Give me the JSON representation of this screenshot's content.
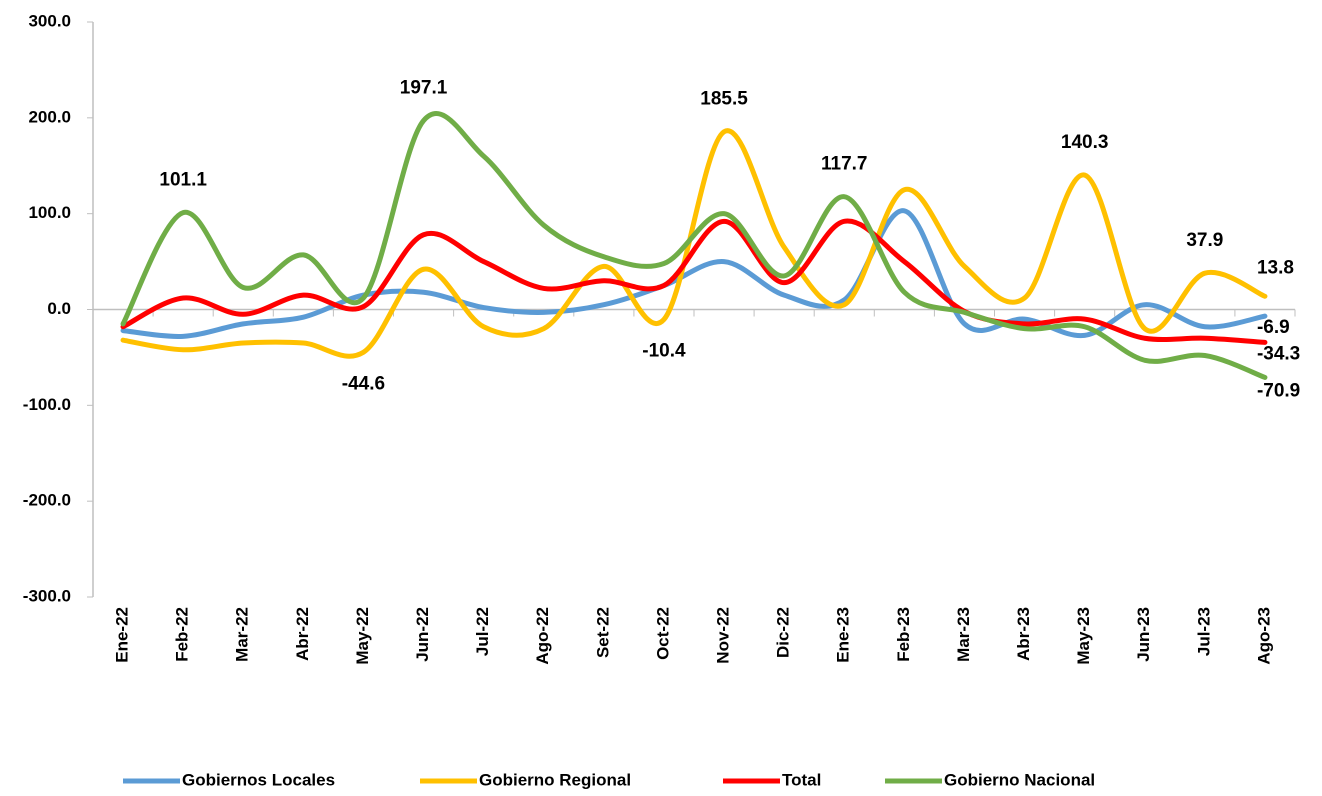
{
  "chart_data": {
    "type": "line",
    "categories": [
      "Ene-22",
      "Feb-22",
      "Mar-22",
      "Abr-22",
      "May-22",
      "Jun-22",
      "Jul-22",
      "Ago-22",
      "Set-22",
      "Oct-22",
      "Nov-22",
      "Dic-22",
      "Ene-23",
      "Feb-23",
      "Mar-23",
      "Abr-23",
      "May-23",
      "Jun-23",
      "Jul-23",
      "Ago-23"
    ],
    "ylim": [
      -300,
      300
    ],
    "yticks": [
      {
        "value": -300,
        "label": "-300.0"
      },
      {
        "value": -200,
        "label": "-200.0"
      },
      {
        "value": -100,
        "label": "-100.0"
      },
      {
        "value": 0,
        "label": "0.0"
      },
      {
        "value": 100,
        "label": "100.0"
      },
      {
        "value": 200,
        "label": "200.0"
      },
      {
        "value": 300,
        "label": "300.0"
      }
    ],
    "grid": false,
    "legend": "bottom",
    "series": [
      {
        "name": "Gobiernos Locales",
        "color": "#5b9bd5",
        "values": [
          -22,
          -28,
          -15,
          -8,
          15,
          18,
          2,
          -3,
          5,
          25,
          50,
          15,
          10,
          103,
          -15,
          -10,
          -27,
          5,
          -18,
          -6.9
        ],
        "value_labels": [
          null,
          null,
          null,
          null,
          null,
          null,
          null,
          null,
          null,
          null,
          null,
          null,
          null,
          null,
          null,
          null,
          null,
          null,
          null,
          "-6.9"
        ]
      },
      {
        "name": "Gobierno Regional",
        "color": "#ffc000",
        "values": [
          -32,
          -42,
          -35,
          -35,
          -44.6,
          42,
          -18,
          -20,
          45,
          -10.4,
          185.5,
          65,
          5,
          125,
          45,
          12,
          140.3,
          -20,
          37.9,
          13.8
        ],
        "value_labels": [
          null,
          null,
          null,
          null,
          "-44.6",
          null,
          null,
          null,
          null,
          "-10.4",
          "185.5",
          null,
          null,
          null,
          null,
          null,
          "140.3",
          null,
          "37.9",
          "13.8"
        ]
      },
      {
        "name": "Total",
        "color": "#ff0000",
        "values": [
          -18,
          12,
          -5,
          15,
          3,
          78,
          50,
          22,
          30,
          25,
          92,
          28,
          92,
          50,
          -2,
          -15,
          -10,
          -30,
          -30,
          -34.3
        ],
        "value_labels": [
          null,
          null,
          null,
          null,
          null,
          null,
          null,
          null,
          null,
          null,
          null,
          null,
          null,
          null,
          null,
          null,
          null,
          null,
          null,
          "-34.3"
        ]
      },
      {
        "name": "Gobierno Nacional",
        "color": "#70ad47",
        "values": [
          -15,
          101.1,
          23,
          57,
          12,
          197.1,
          160,
          88,
          55,
          48,
          100,
          35,
          117.7,
          18,
          -3,
          -20,
          -18,
          -53,
          -48,
          -70.9
        ],
        "value_labels": [
          null,
          "101.1",
          null,
          null,
          null,
          "197.1",
          null,
          null,
          null,
          null,
          null,
          null,
          "117.7",
          null,
          null,
          null,
          null,
          null,
          null,
          "-70.9"
        ]
      }
    ]
  }
}
